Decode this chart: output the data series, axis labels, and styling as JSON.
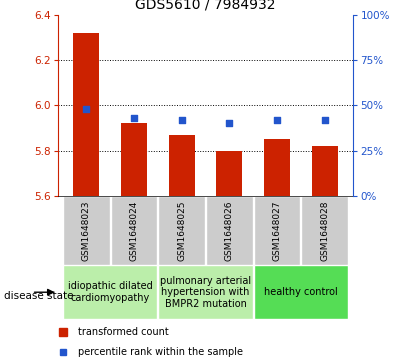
{
  "title": "GDS5610 / 7984932",
  "samples": [
    "GSM1648023",
    "GSM1648024",
    "GSM1648025",
    "GSM1648026",
    "GSM1648027",
    "GSM1648028"
  ],
  "bar_values": [
    6.32,
    5.92,
    5.87,
    5.8,
    5.85,
    5.82
  ],
  "percentile_values": [
    48,
    43,
    42,
    40,
    42,
    42
  ],
  "ylim_left": [
    5.6,
    6.4
  ],
  "ylim_right": [
    0,
    100
  ],
  "yticks_left": [
    5.6,
    5.8,
    6.0,
    6.2,
    6.4
  ],
  "yticks_right": [
    0,
    25,
    50,
    75,
    100
  ],
  "bar_color": "#cc2200",
  "dot_color": "#2255cc",
  "groups": [
    {
      "label": "idiopathic dilated\ncardiomyopathy",
      "indices": [
        0,
        1
      ],
      "color": "#bbeeaa"
    },
    {
      "label": "pulmonary arterial\nhypertension with\nBMPR2 mutation",
      "indices": [
        2,
        3
      ],
      "color": "#bbeeaa"
    },
    {
      "label": "healthy control",
      "indices": [
        4,
        5
      ],
      "color": "#55dd55"
    }
  ],
  "legend_bar_label": "transformed count",
  "legend_dot_label": "percentile rank within the sample",
  "disease_state_label": "disease state",
  "title_fontsize": 10,
  "tick_fontsize": 7.5,
  "sample_fontsize": 6.5,
  "group_fontsize": 7.0
}
